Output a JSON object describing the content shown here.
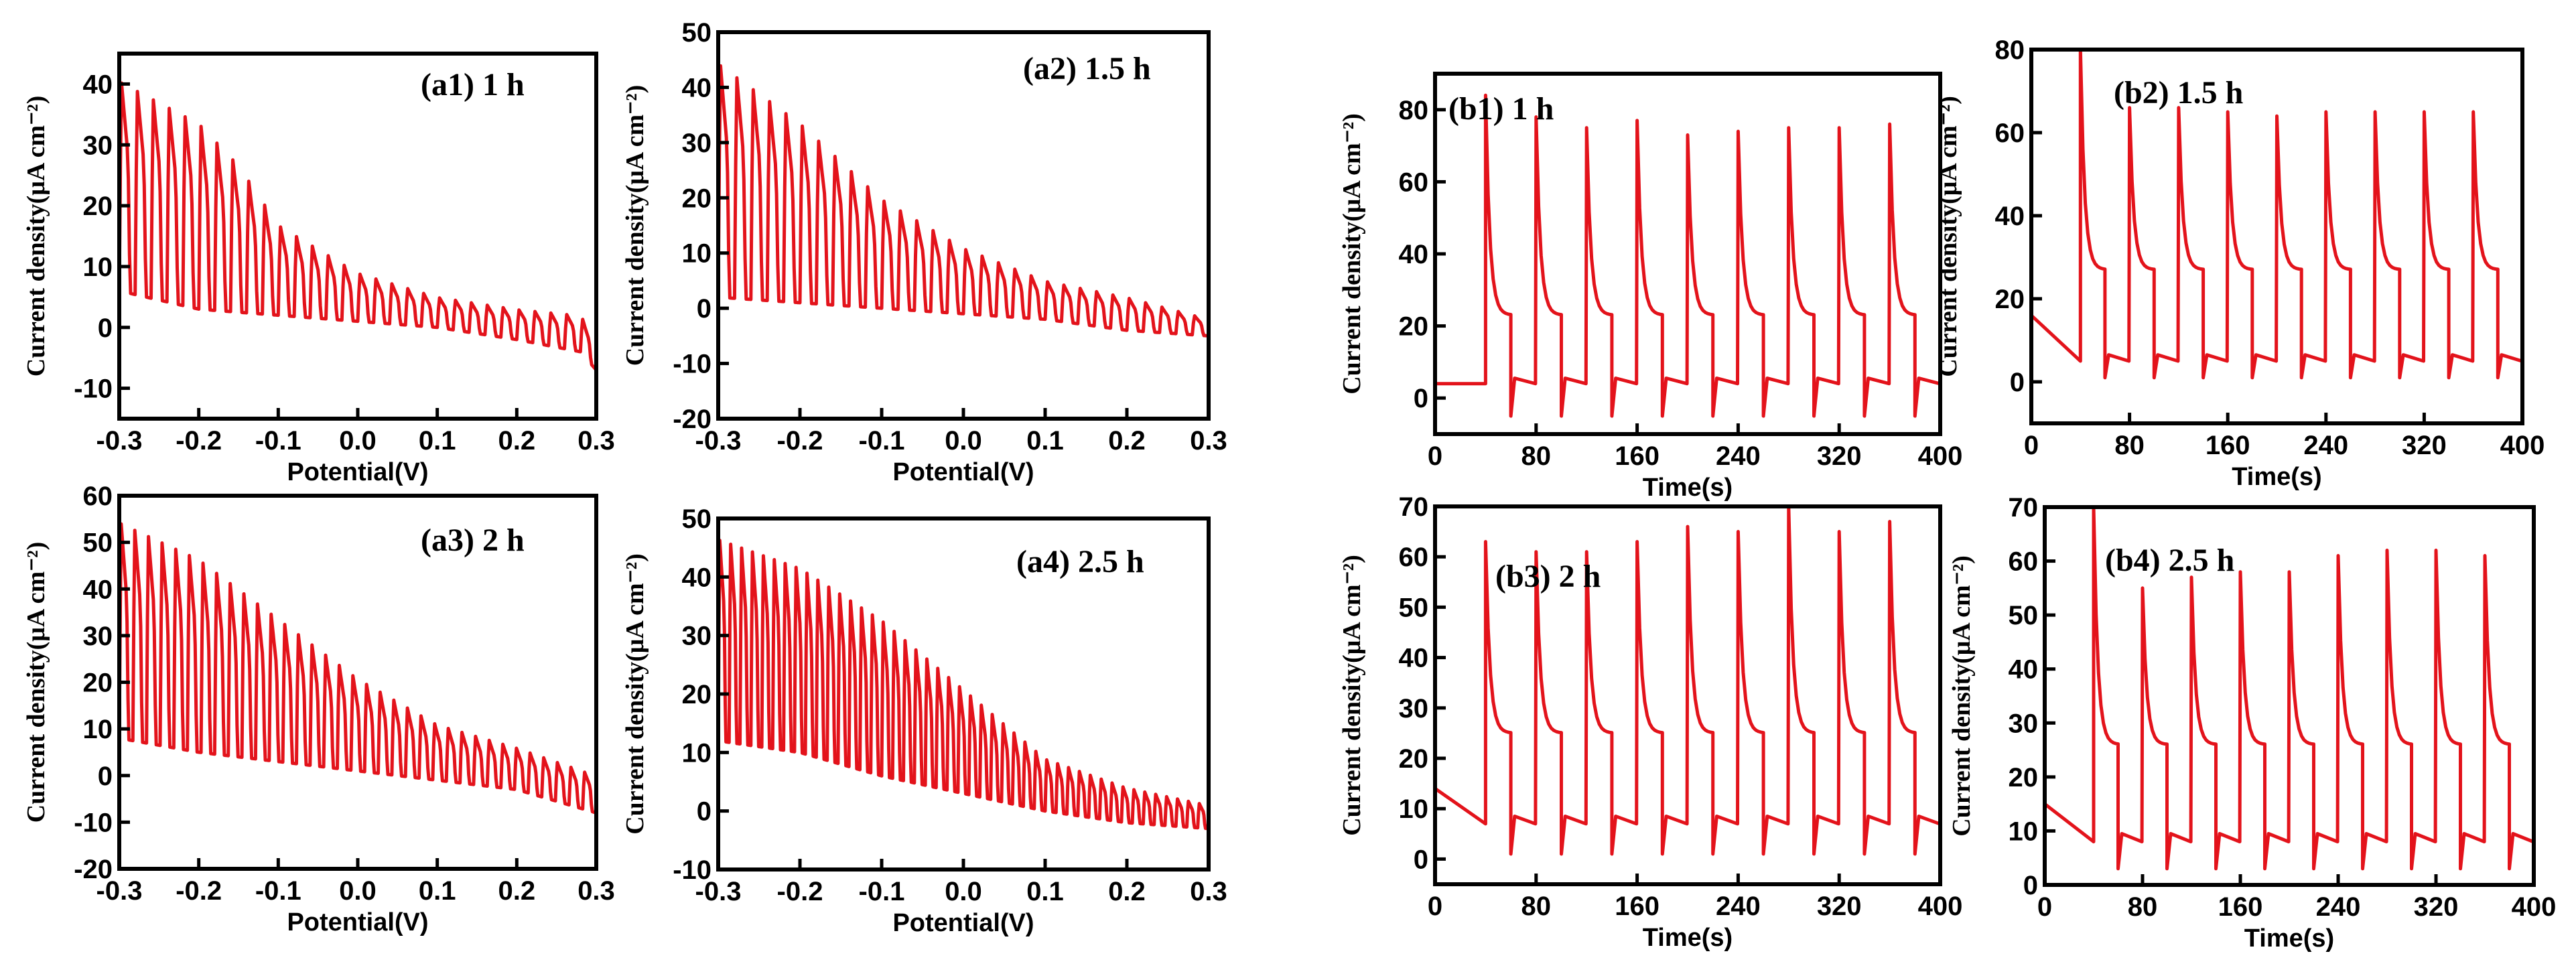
{
  "figure": {
    "series_color": "#e3131b"
  },
  "chart_data": [
    {
      "id": "a1",
      "type": "line",
      "label": "(a1)  1 h",
      "xlabel": "Potential(V)",
      "ylabel": "Current density(μA cm⁻²)",
      "xlim": [
        -0.3,
        0.3
      ],
      "ylim": [
        -15,
        45
      ],
      "xticks": [
        -0.3,
        -0.2,
        -0.1,
        0.0,
        0.1,
        0.2,
        0.3
      ],
      "xticklabels": [
        "-0.3",
        "-0.2",
        "-0.1",
        "0.0",
        "0.1",
        "0.2",
        "0.3"
      ],
      "yticks": [
        -10,
        0,
        10,
        20,
        30,
        40
      ],
      "yticklabels": [
        "-10",
        "0",
        "10",
        "20",
        "30",
        "40"
      ],
      "signal": {
        "kind": "lsv_chopped",
        "x_start": -0.3,
        "x_end": 0.3,
        "cycles": 30,
        "on_envelope": [
          [
            -0.3,
            41
          ],
          [
            -0.2,
            34
          ],
          [
            -0.15,
            27
          ],
          [
            -0.1,
            17
          ],
          [
            0.0,
            9
          ],
          [
            0.1,
            5
          ],
          [
            0.2,
            3
          ],
          [
            0.28,
            2
          ],
          [
            0.3,
            -2
          ]
        ],
        "off_envelope": [
          [
            -0.3,
            6
          ],
          [
            -0.2,
            3
          ],
          [
            -0.1,
            2
          ],
          [
            0.0,
            1
          ],
          [
            0.1,
            0
          ],
          [
            0.2,
            -2
          ],
          [
            0.28,
            -4
          ],
          [
            0.3,
            -7
          ]
        ]
      }
    },
    {
      "id": "a2",
      "type": "line",
      "label": "(a2) 1.5 h",
      "xlabel": "Potential(V)",
      "ylabel": "Current density(μA cm⁻²)",
      "xlim": [
        -0.3,
        0.3
      ],
      "ylim": [
        -20,
        50
      ],
      "xticks": [
        -0.3,
        -0.2,
        -0.1,
        0.0,
        0.1,
        0.2,
        0.3
      ],
      "xticklabels": [
        "-0.3",
        "-0.2",
        "-0.1",
        "0.0",
        "0.1",
        "0.2",
        "0.3"
      ],
      "yticks": [
        -20,
        -10,
        0,
        10,
        20,
        30,
        40,
        50
      ],
      "yticklabels": [
        "-20",
        "-10",
        "0",
        "10",
        "20",
        "30",
        "40",
        "50"
      ],
      "signal": {
        "kind": "lsv_chopped",
        "x_start": -0.3,
        "x_end": 0.3,
        "cycles": 30,
        "on_envelope": [
          [
            -0.3,
            45
          ],
          [
            -0.2,
            34
          ],
          [
            -0.1,
            20
          ],
          [
            0.0,
            11
          ],
          [
            0.1,
            5
          ],
          [
            0.2,
            2
          ],
          [
            0.3,
            -2
          ]
        ],
        "off_envelope": [
          [
            -0.3,
            2
          ],
          [
            -0.2,
            1
          ],
          [
            -0.1,
            0
          ],
          [
            0.0,
            -1
          ],
          [
            0.1,
            -2
          ],
          [
            0.2,
            -4
          ],
          [
            0.3,
            -5
          ]
        ]
      }
    },
    {
      "id": "a3",
      "type": "line",
      "label": "(a3)  2 h",
      "xlabel": "Potential(V)",
      "ylabel": "Current density(μA cm⁻²)",
      "xlim": [
        -0.3,
        0.3
      ],
      "ylim": [
        -20,
        60
      ],
      "xticks": [
        -0.3,
        -0.2,
        -0.1,
        0.0,
        0.1,
        0.2,
        0.3
      ],
      "xticklabels": [
        "-0.3",
        "-0.2",
        "-0.1",
        "0.0",
        "0.1",
        "0.2",
        "0.3"
      ],
      "yticks": [
        -20,
        -10,
        0,
        10,
        20,
        30,
        40,
        50,
        60
      ],
      "yticklabels": [
        "-20",
        "-10",
        "0",
        "10",
        "20",
        "30",
        "40",
        "50",
        "60"
      ],
      "signal": {
        "kind": "lsv_chopped",
        "x_start": -0.3,
        "x_end": 0.3,
        "cycles": 35,
        "on_envelope": [
          [
            -0.3,
            55
          ],
          [
            -0.2,
            47
          ],
          [
            -0.1,
            34
          ],
          [
            0.0,
            21
          ],
          [
            0.1,
            11
          ],
          [
            0.2,
            6
          ],
          [
            0.3,
            0
          ]
        ],
        "off_envelope": [
          [
            -0.3,
            8
          ],
          [
            -0.2,
            5
          ],
          [
            -0.1,
            3
          ],
          [
            0.0,
            1
          ],
          [
            0.1,
            -1
          ],
          [
            0.2,
            -3
          ],
          [
            0.3,
            -8
          ]
        ]
      }
    },
    {
      "id": "a4",
      "type": "line",
      "label": "(a4) 2.5 h",
      "xlabel": "Potential(V)",
      "ylabel": "Current density(μA cm⁻²)",
      "xlim": [
        -0.3,
        0.3
      ],
      "ylim": [
        -10,
        50
      ],
      "xticks": [
        -0.3,
        -0.2,
        -0.1,
        0.0,
        0.1,
        0.2,
        0.3
      ],
      "xticklabels": [
        "-0.3",
        "-0.2",
        "-0.1",
        "0.0",
        "0.1",
        "0.2",
        "0.3"
      ],
      "yticks": [
        -10,
        0,
        10,
        20,
        30,
        40,
        50
      ],
      "yticklabels": [
        "-10",
        "0",
        "10",
        "20",
        "30",
        "40",
        "50"
      ],
      "signal": {
        "kind": "lsv_chopped",
        "x_start": -0.3,
        "x_end": 0.3,
        "cycles": 45,
        "on_envelope": [
          [
            -0.3,
            47
          ],
          [
            -0.2,
            42
          ],
          [
            -0.1,
            33
          ],
          [
            0.0,
            21
          ],
          [
            0.1,
            9
          ],
          [
            0.2,
            4
          ],
          [
            0.3,
            1
          ]
        ],
        "off_envelope": [
          [
            -0.3,
            12
          ],
          [
            -0.2,
            10
          ],
          [
            -0.1,
            6
          ],
          [
            0.0,
            3
          ],
          [
            0.1,
            0
          ],
          [
            0.2,
            -2
          ],
          [
            0.3,
            -3
          ]
        ]
      }
    },
    {
      "id": "b1",
      "type": "line",
      "label": "(b1)    1 h",
      "xlabel": "Time(s)",
      "ylabel": "Current density(μA cm⁻²)",
      "xlim": [
        0,
        400
      ],
      "ylim": [
        -10,
        90
      ],
      "xticks": [
        0,
        80,
        160,
        240,
        320,
        400
      ],
      "xticklabels": [
        "0",
        "80",
        "160",
        "240",
        "320",
        "400"
      ],
      "yticks": [
        0,
        20,
        40,
        60,
        80
      ],
      "yticklabels": [
        "0",
        "20",
        "40",
        "60",
        "80"
      ],
      "signal": {
        "kind": "chrono_chopped",
        "t_start": 0,
        "t_end": 400,
        "period": 40,
        "initial_dark": 4,
        "dark": 4,
        "peaks": [
          84,
          78,
          75,
          77,
          73,
          74,
          75,
          75,
          76
        ],
        "plateau": 23,
        "undershoot": -5
      }
    },
    {
      "id": "b2",
      "type": "line",
      "label": "(b2)  1.5 h",
      "xlabel": "Time(s)",
      "ylabel": "Current density(μA cm⁻²)",
      "xlim": [
        0,
        400
      ],
      "ylim": [
        -10,
        80
      ],
      "xticks": [
        0,
        80,
        160,
        240,
        320,
        400
      ],
      "xticklabels": [
        "0",
        "80",
        "160",
        "240",
        "320",
        "400"
      ],
      "yticks": [
        0,
        20,
        40,
        60,
        80
      ],
      "yticklabels": [
        "0",
        "20",
        "40",
        "60",
        "80"
      ],
      "signal": {
        "kind": "chrono_chopped",
        "t_start": 0,
        "t_end": 400,
        "period": 40,
        "initial_dark": 16,
        "dark": 5,
        "peaks": [
          80,
          66,
          66,
          65,
          64,
          65,
          65,
          65,
          65
        ],
        "plateau": 27,
        "undershoot": 1
      }
    },
    {
      "id": "b3",
      "type": "line",
      "label": "(b3)   2 h",
      "xlabel": "Time(s)",
      "ylabel": "Current density(μA cm⁻²)",
      "xlim": [
        0,
        400
      ],
      "ylim": [
        -5,
        70
      ],
      "xticks": [
        0,
        80,
        160,
        240,
        320,
        400
      ],
      "xticklabels": [
        "0",
        "80",
        "160",
        "240",
        "320",
        "400"
      ],
      "yticks": [
        0,
        10,
        20,
        30,
        40,
        50,
        60,
        70
      ],
      "yticklabels": [
        "0",
        "10",
        "20",
        "30",
        "40",
        "50",
        "60",
        "70"
      ],
      "signal": {
        "kind": "chrono_chopped",
        "t_start": 0,
        "t_end": 400,
        "period": 40,
        "initial_dark": 14,
        "dark": 7,
        "peaks": [
          63,
          61,
          61,
          63,
          66,
          65,
          70,
          65,
          67
        ],
        "plateau": 25,
        "undershoot": 1
      }
    },
    {
      "id": "b4",
      "type": "line",
      "label": "(b4)    2.5 h",
      "xlabel": "Time(s)",
      "ylabel": "Current density(μA cm⁻²)",
      "xlim": [
        0,
        400
      ],
      "ylim": [
        0,
        70
      ],
      "xticks": [
        0,
        80,
        160,
        240,
        320,
        400
      ],
      "xticklabels": [
        "0",
        "80",
        "160",
        "240",
        "320",
        "400"
      ],
      "yticks": [
        0,
        10,
        20,
        30,
        40,
        50,
        60,
        70
      ],
      "yticklabels": [
        "0",
        "10",
        "20",
        "30",
        "40",
        "50",
        "60",
        "70"
      ],
      "signal": {
        "kind": "chrono_chopped",
        "t_start": 0,
        "t_end": 400,
        "period": 40,
        "initial_dark": 15,
        "dark": 8,
        "peaks": [
          70,
          55,
          57,
          58,
          58,
          61,
          62,
          62,
          61
        ],
        "plateau": 26,
        "undershoot": 3
      }
    }
  ]
}
